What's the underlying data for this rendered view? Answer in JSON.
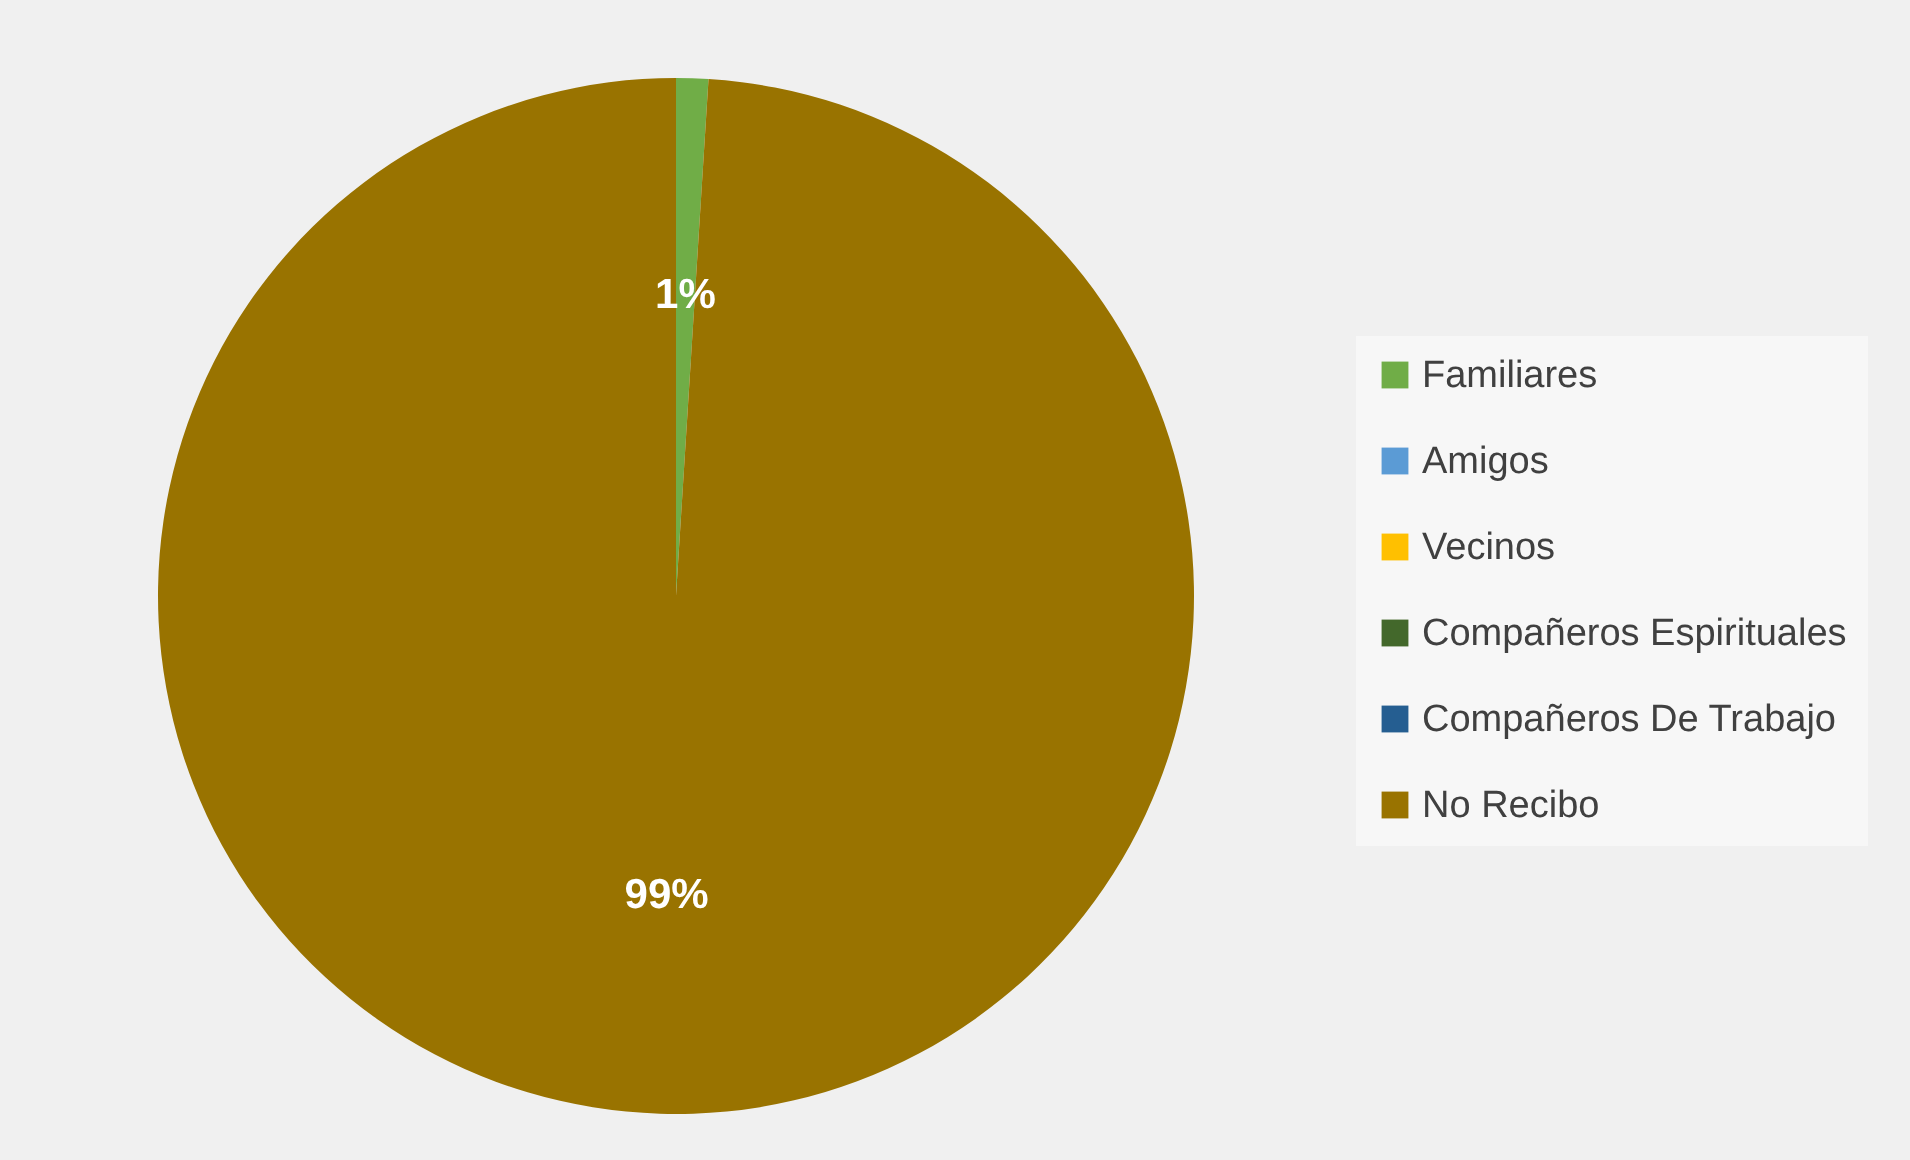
{
  "chart_data": {
    "type": "pie",
    "categories": [
      "Familiares",
      "Amigos",
      "Vecinos",
      "Compañeros Espirituales",
      "Compañeros De Trabajo",
      "No Recibo"
    ],
    "values": [
      1,
      0,
      0,
      0,
      0,
      99
    ],
    "colors": [
      "#70ad47",
      "#5b9bd5",
      "#ffc000",
      "#43682b",
      "#255e91",
      "#997300"
    ],
    "value_labels": [
      "1%",
      null,
      null,
      null,
      null,
      "99%"
    ],
    "legend": "right"
  }
}
